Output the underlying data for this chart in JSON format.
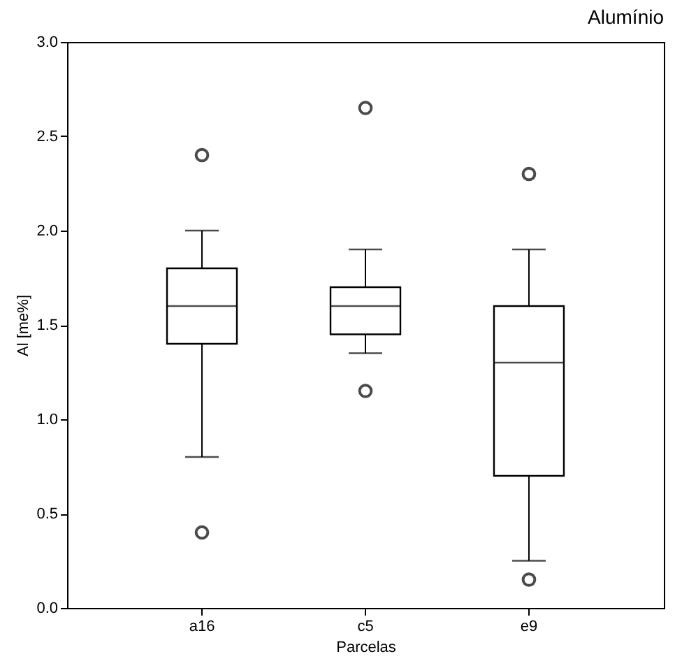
{
  "chart_data": {
    "type": "box",
    "title": "Alumínio",
    "xlabel": "Parcelas",
    "ylabel": "Al [me%]",
    "categories": [
      "a16",
      "c5",
      "e9"
    ],
    "boxes": [
      {
        "low": 0.8,
        "q1": 1.4,
        "median": 1.6,
        "q3": 1.8,
        "high": 2.0,
        "outliers": [
          2.4,
          0.4
        ]
      },
      {
        "low": 1.35,
        "q1": 1.45,
        "median": 1.6,
        "q3": 1.7,
        "high": 1.9,
        "outliers": [
          2.65,
          1.15
        ]
      },
      {
        "low": 0.25,
        "q1": 0.7,
        "median": 1.3,
        "q3": 1.6,
        "high": 1.9,
        "outliers": [
          2.3,
          0.15
        ]
      }
    ],
    "ylim": [
      0,
      3
    ],
    "yticks": [
      {
        "value": 0,
        "label": "0.0"
      },
      0.5,
      {
        "value": 1,
        "label": "1.0"
      },
      1.5,
      {
        "value": 2,
        "label": "2.0"
      },
      2.5,
      {
        "value": 3,
        "label": "3.0"
      }
    ],
    "grid": false
  }
}
